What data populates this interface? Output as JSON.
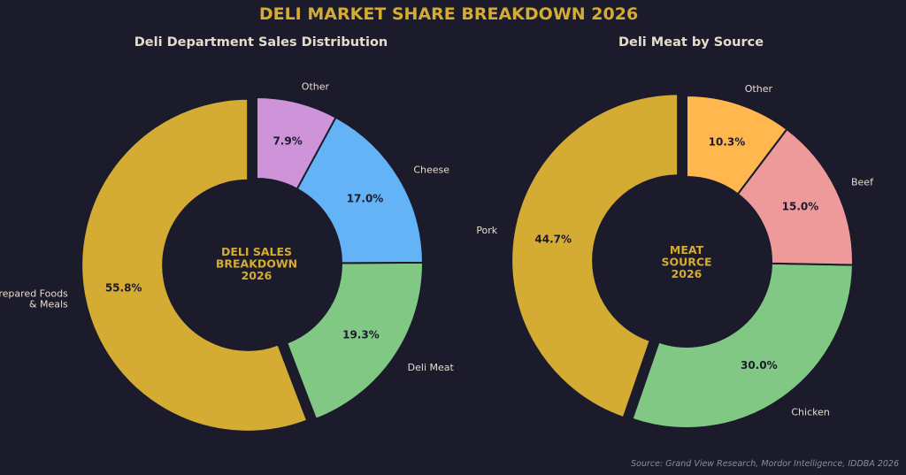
{
  "title": "DELI MARKET SHARE BREAKDOWN 2026",
  "source": "Source: Grand View Research, Mordor Intelligence, IDDBA 2026",
  "background": "#1b1b2c",
  "chart_data": [
    {
      "type": "pie",
      "donut": true,
      "title": "Deli Department Sales Distribution",
      "center_text": [
        "DELI SALES",
        "BREAKDOWN",
        "2026"
      ],
      "start_angle_deg": 90,
      "direction": "counterclockwise",
      "exploded": [
        "Prepared Foods & Meals"
      ],
      "slices": [
        {
          "label": [
            "Prepared Foods",
            "& Meals"
          ],
          "value": 55.8,
          "pct_label": "55.8%",
          "color": "#d4ab33"
        },
        {
          "label": [
            "Deli Meat"
          ],
          "value": 19.3,
          "pct_label": "19.3%",
          "color": "#80c883"
        },
        {
          "label": [
            "Cheese"
          ],
          "value": 17.0,
          "pct_label": "17.0%",
          "color": "#63b3f6"
        },
        {
          "label": [
            "Other"
          ],
          "value": 7.9,
          "pct_label": "7.9%",
          "color": "#ce93d8"
        }
      ]
    },
    {
      "type": "pie",
      "donut": true,
      "title": "Deli Meat by Source",
      "center_text": [
        "MEAT",
        "SOURCE",
        "2026"
      ],
      "start_angle_deg": 90,
      "direction": "counterclockwise",
      "exploded": [
        "Pork"
      ],
      "slices": [
        {
          "label": [
            "Pork"
          ],
          "value": 44.7,
          "pct_label": "44.7%",
          "color": "#d4ab33"
        },
        {
          "label": [
            "Chicken"
          ],
          "value": 30.0,
          "pct_label": "30.0%",
          "color": "#80c883"
        },
        {
          "label": [
            "Beef"
          ],
          "value": 15.0,
          "pct_label": "15.0%",
          "color": "#ef9a9a"
        },
        {
          "label": [
            "Other"
          ],
          "value": 10.3,
          "pct_label": "10.3%",
          "color": "#ffb74e"
        }
      ]
    }
  ]
}
